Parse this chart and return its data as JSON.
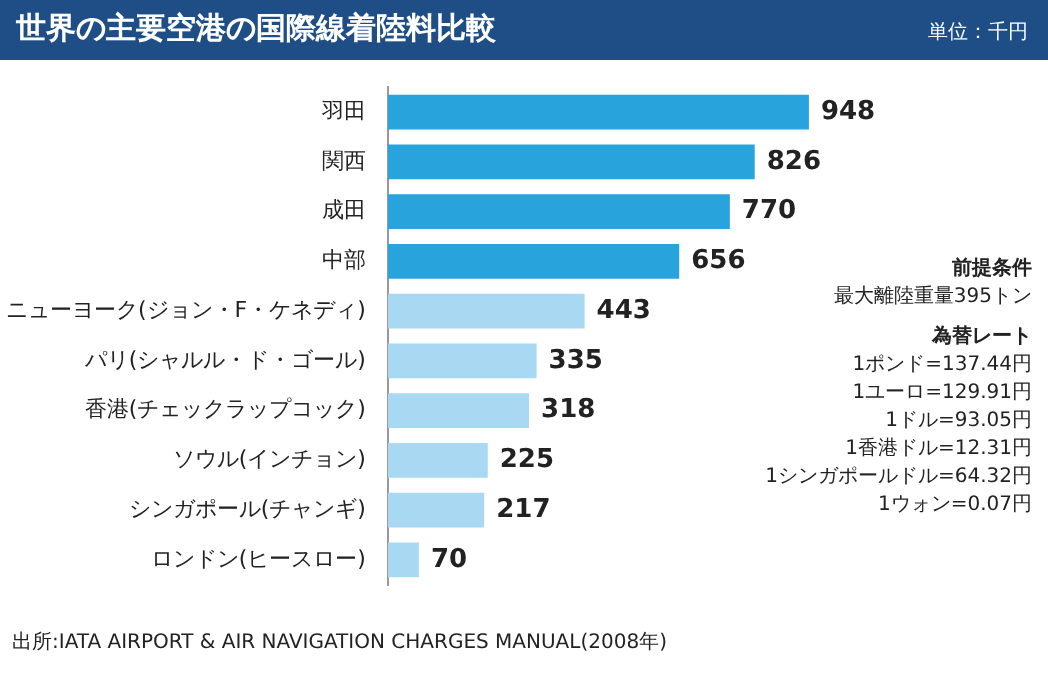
{
  "chart_data": {
    "type": "bar",
    "orientation": "horizontal",
    "title": "世界の主要空港の国際線着陸料比較",
    "subtitle": "単位：千円",
    "categories": [
      "羽田",
      "関西",
      "成田",
      "中部",
      "ニューヨーク(ジョン・F・ケネディ)",
      "パリ(シャルル・ド・ゴール)",
      "香港(チェックラップコック)",
      "ソウル(インチョン)",
      "シンガポール(チャンギ)",
      "ロンドン(ヒースロー)"
    ],
    "values": [
      948,
      826,
      770,
      656,
      443,
      335,
      318,
      225,
      217,
      70
    ],
    "colors": [
      "#29a3dc",
      "#29a3dc",
      "#29a3dc",
      "#29a3dc",
      "#a9d9f2",
      "#a9d9f2",
      "#a9d9f2",
      "#a9d9f2",
      "#a9d9f2",
      "#a9d9f2"
    ],
    "data_labels": true,
    "legend": false,
    "annotations": [
      "前提条件",
      "最大離陸重量395トン",
      "為替レート",
      "1ポンド=137.44円",
      "1ユーロ=129.91円",
      "1ドル=93.05円",
      "1香港ドル=12.31円",
      "1シンガポールドル=64.32円",
      "1ウォン=0.07円",
      "出所:IATA AIRPORT & AIR NAVIGATION CHARGES MANUAL(2008年)"
    ]
  }
}
